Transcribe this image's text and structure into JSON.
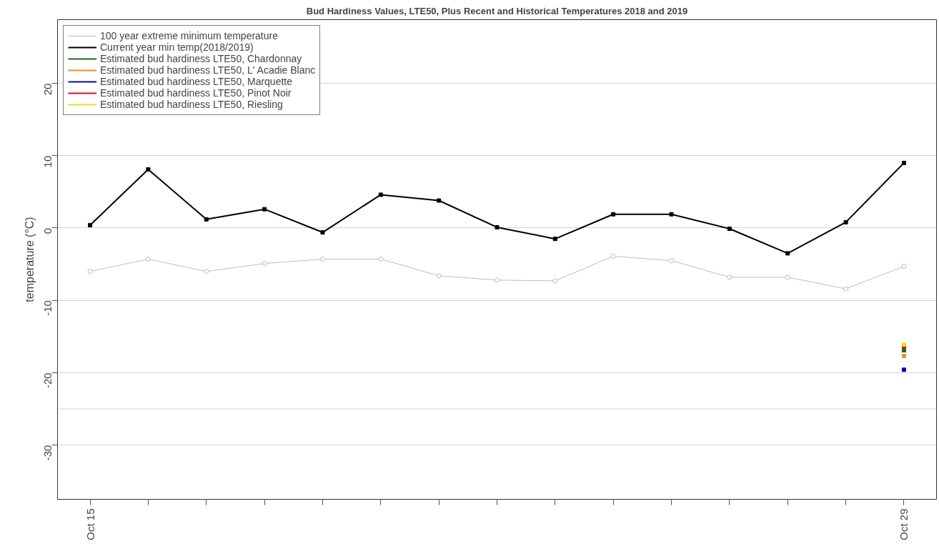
{
  "chart_data": {
    "type": "line",
    "title": "Bud Hardiness Values, LTE50, Plus Recent and Historical Temperatures 2018 and 2019",
    "ylabel": "temperature (°C)",
    "categories": [
      "Oct 15",
      null,
      null,
      null,
      null,
      null,
      null,
      null,
      null,
      null,
      null,
      null,
      null,
      null,
      "Oct 29"
    ],
    "ylim": [
      -37.5,
      28.8
    ],
    "yticks": [
      -30,
      -20,
      -10,
      0,
      10,
      20
    ],
    "grid": "y",
    "legend": "top left",
    "ref_lines": [
      {
        "axis": "y",
        "value": -25,
        "label": null,
        "color": "#d3d3d3"
      }
    ],
    "series": [
      {
        "name": "100 year extreme minimum temperature",
        "color": "#bdbdbd",
        "marker": "circle",
        "values": [
          -6.0,
          -4.3,
          -6.0,
          -4.9,
          -4.3,
          -4.3,
          -6.6,
          -7.2,
          -7.3,
          -3.9,
          -4.5,
          -6.8,
          -6.8,
          -8.4,
          -5.3
        ]
      },
      {
        "name": "Current year min temp(2018/2019)",
        "color": "#000000",
        "marker": "square",
        "values": [
          0.4,
          8.1,
          1.2,
          2.6,
          -0.6,
          4.6,
          3.8,
          0.1,
          -1.5,
          1.9,
          1.9,
          -0.1,
          -3.5,
          0.8,
          9.0
        ]
      },
      {
        "name": "Estimated bud hardiness LTE50, Chardonnay",
        "color": "#1a6b1a",
        "marker": "square",
        "values": [
          null,
          null,
          null,
          null,
          null,
          null,
          null,
          null,
          null,
          null,
          null,
          null,
          null,
          null,
          -16.9
        ]
      },
      {
        "name": "Estimated bud hardiness LTE50, L' Acadie Blanc",
        "color": "#e8902e",
        "marker": "square",
        "values": [
          null,
          null,
          null,
          null,
          null,
          null,
          null,
          null,
          null,
          null,
          null,
          null,
          null,
          null,
          -17.7
        ]
      },
      {
        "name": "Estimated bud hardiness LTE50, Marquette",
        "color": "#0a0aa0",
        "marker": "square",
        "values": [
          null,
          null,
          null,
          null,
          null,
          null,
          null,
          null,
          null,
          null,
          null,
          null,
          null,
          null,
          -19.6
        ]
      },
      {
        "name": "Estimated bud hardiness LTE50, Pinot Noir",
        "color": "#e01010",
        "marker": "square",
        "values": [
          null,
          null,
          null,
          null,
          null,
          null,
          null,
          null,
          null,
          null,
          null,
          null,
          null,
          null,
          -16.4
        ]
      },
      {
        "name": "Estimated bud hardiness LTE50, Riesling",
        "color": "#f0d830",
        "marker": "square",
        "values": [
          null,
          null,
          null,
          null,
          null,
          null,
          null,
          null,
          null,
          null,
          null,
          null,
          null,
          null,
          -16.1
        ]
      }
    ]
  }
}
